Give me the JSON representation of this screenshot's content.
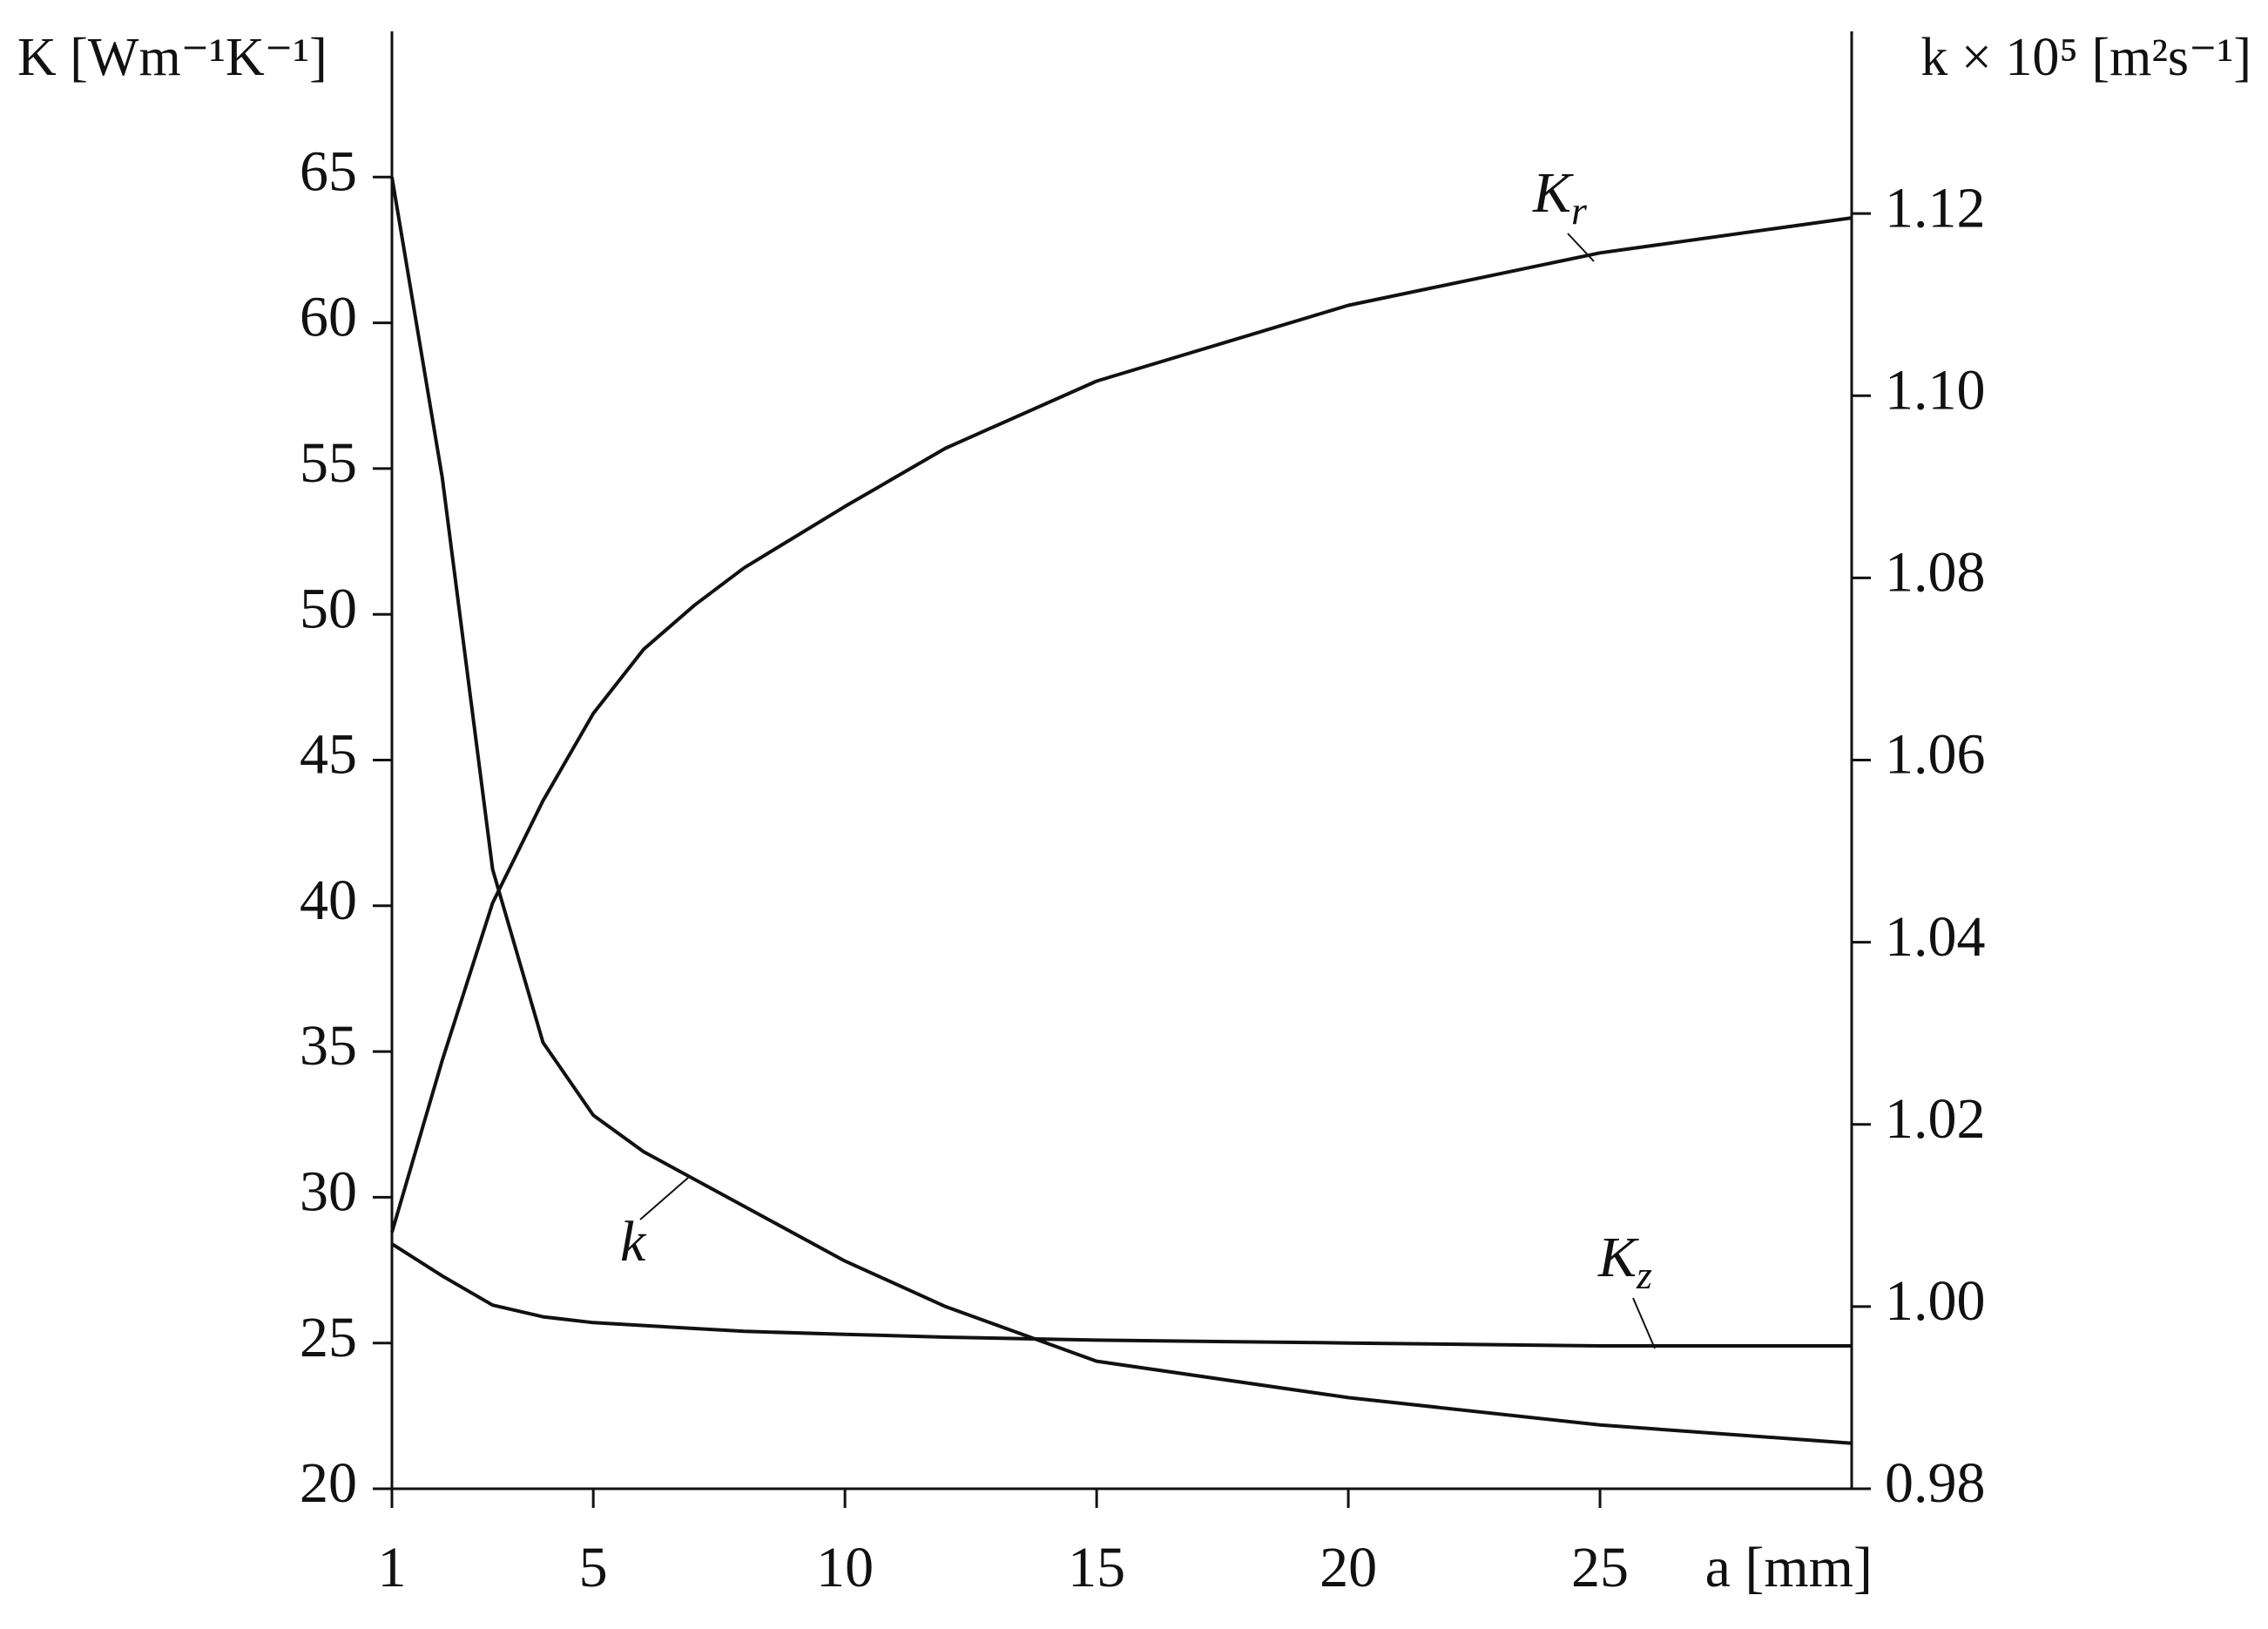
{
  "chart_data": {
    "type": "line",
    "x_label": "a [mm]",
    "y_label": "K [Wm⁻¹K⁻¹]",
    "y2_label": "k × 10⁵ [m²s⁻¹]",
    "x": [
      1,
      2,
      3,
      4,
      5,
      6,
      7,
      8,
      10,
      12,
      15,
      20,
      25,
      30
    ],
    "series": [
      {
        "name": "Kr",
        "color": "#111111",
        "values": [
          28.8,
          34.7,
          40.1,
          43.6,
          46.6,
          48.8,
          50.3,
          51.6,
          53.7,
          55.7,
          58.0,
          60.6,
          62.4,
          63.6
        ]
      },
      {
        "name": "k",
        "color": "#111111",
        "axis": "y2",
        "values": [
          1.124,
          1.091,
          1.048,
          1.029,
          1.021,
          1.017,
          1.014,
          1.011,
          1.005,
          1.0,
          0.994,
          0.99,
          0.987,
          0.985
        ]
      },
      {
        "name": "Kz",
        "color": "#111111",
        "values": [
          28.4,
          27.3,
          26.3,
          25.9,
          25.7,
          25.6,
          25.5,
          25.4,
          25.3,
          25.2,
          25.1,
          25.0,
          24.9,
          24.9
        ]
      }
    ],
    "xlim": [
      1,
      30
    ],
    "xticks": [
      1,
      5,
      10,
      15,
      20,
      25
    ],
    "ylim": [
      20,
      70
    ],
    "yticks": [
      20,
      25,
      30,
      35,
      40,
      45,
      50,
      55,
      60,
      65
    ],
    "y2lim": [
      0.98,
      1.14
    ],
    "y2ticks": [
      0.98,
      {
        "value": 1,
        "label": "1.00"
      },
      1.02,
      1.04,
      1.06,
      1.08,
      {
        "value": 1.1,
        "label": "1.10"
      },
      1.12
    ],
    "grid": false
  }
}
